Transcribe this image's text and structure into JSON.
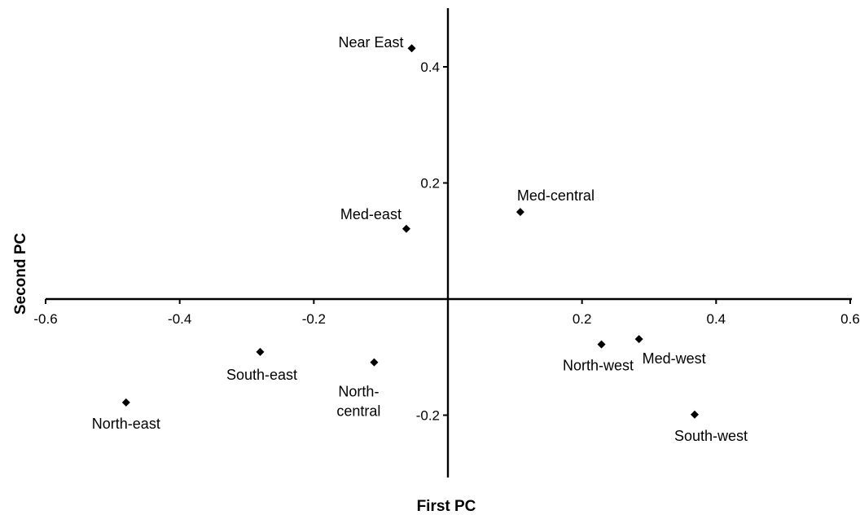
{
  "chart_data": {
    "type": "scatter",
    "xlabel": "First PC",
    "ylabel": "Second PC",
    "xlim": [
      -0.6,
      0.6
    ],
    "ylim": [
      -0.3,
      0.5
    ],
    "grid": false,
    "x_ticks": [
      {
        "value": -0.6,
        "label": "-0.6"
      },
      {
        "value": -0.4,
        "label": "-0.4"
      },
      {
        "value": -0.2,
        "label": "-0.2"
      },
      {
        "value": 0.2,
        "label": "0.2"
      },
      {
        "value": 0.4,
        "label": "0.4"
      },
      {
        "value": 0.6,
        "label": "0.6"
      }
    ],
    "y_ticks": [
      {
        "value": 0.4,
        "label": "0.4"
      },
      {
        "value": 0.2,
        "label": "0.2"
      },
      {
        "value": -0.2,
        "label": "-0.2"
      }
    ],
    "points": [
      {
        "label": "Near East",
        "x": -0.054,
        "y": 0.432
      },
      {
        "label": "Med-east",
        "x": -0.062,
        "y": 0.121
      },
      {
        "label": "Med-central",
        "x": 0.108,
        "y": 0.15
      },
      {
        "label": "South-east",
        "x": -0.28,
        "y": -0.091
      },
      {
        "label": "North-central",
        "x": -0.11,
        "y": -0.109
      },
      {
        "label": "North-east",
        "x": -0.48,
        "y": -0.178
      },
      {
        "label": "North-west",
        "x": 0.229,
        "y": -0.078
      },
      {
        "label": "Med-west",
        "x": 0.285,
        "y": -0.069
      },
      {
        "label": "South-west",
        "x": 0.368,
        "y": -0.199
      }
    ]
  }
}
